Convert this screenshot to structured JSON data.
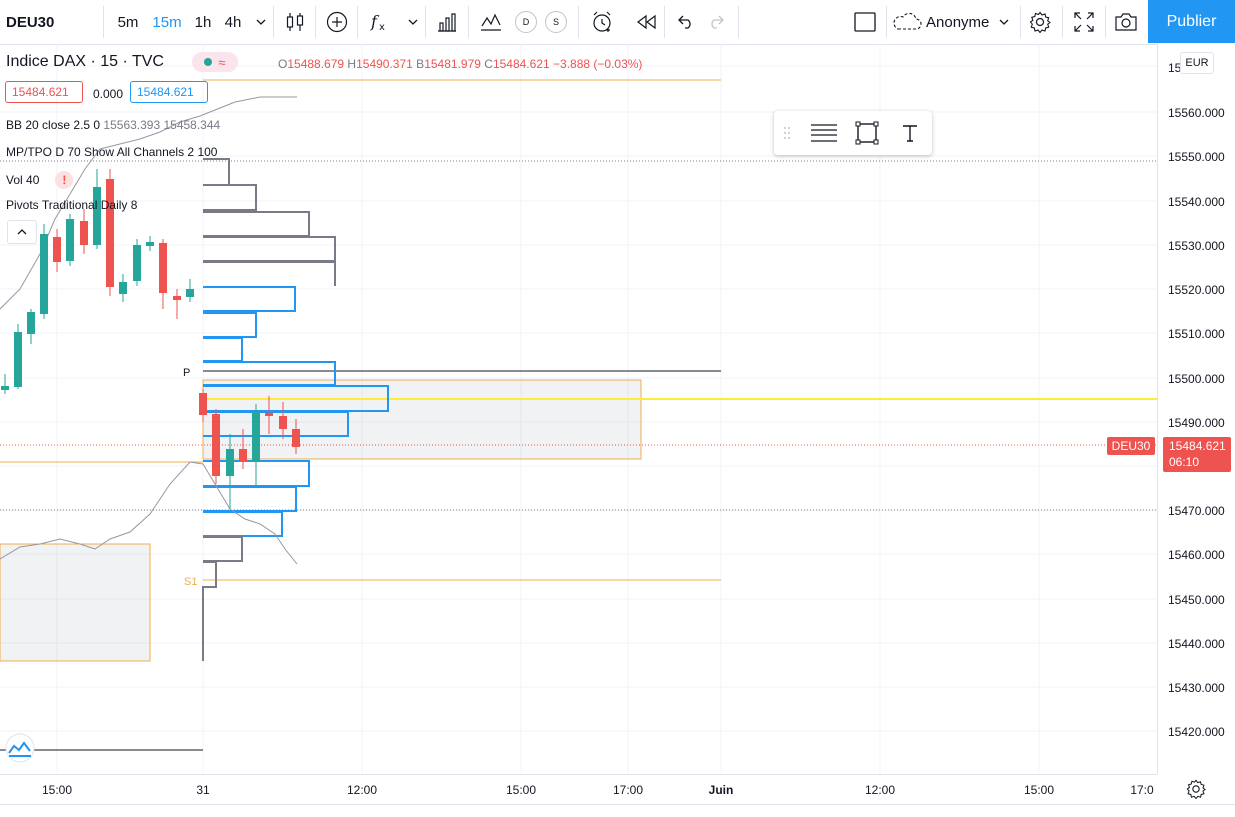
{
  "toolbar": {
    "symbol": "DEU30",
    "intervals": [
      "5m",
      "15m",
      "1h",
      "4h"
    ],
    "active_interval": "15m",
    "compare_d": "D",
    "compare_s": "S",
    "account": "Anonyme",
    "publish": "Publier"
  },
  "header": {
    "name": "Indice DAX · 15 · TVC",
    "ohlc": {
      "o_label": "O",
      "o": "15488.679",
      "h_label": "H",
      "h": "15490.371",
      "l_label": "B",
      "l": "15481.979",
      "c_label": "C",
      "c": "15484.621",
      "change": "−3.888 (−0.03%)"
    },
    "bid": "15484.621",
    "spread": "0.000",
    "ask": "15484.621"
  },
  "indicators": [
    {
      "name": "BB",
      "params": "20 close 2.5 0",
      "values": "15563.393  15458.344"
    },
    {
      "name": "MP/TPO",
      "params": "D 70 Show All Channels 2 100",
      "values": ""
    },
    {
      "name": "Vol",
      "params": "40",
      "values": ""
    },
    {
      "name": "Pivots",
      "params": "Traditional Daily 8",
      "values": ""
    }
  ],
  "pivot_labels": {
    "p": "P",
    "s1": "S1"
  },
  "price_axis": {
    "currency": "EUR",
    "ticks": [
      "15560.000",
      "15550.000",
      "15540.000",
      "15530.000",
      "15520.000",
      "15510.000",
      "15500.000",
      "15490.000",
      "15470.000",
      "15460.000",
      "15450.000",
      "15440.000",
      "15430.000",
      "15420.000"
    ],
    "top_partial": "15",
    "current_price": "15484.621",
    "countdown": "06:10",
    "symbol_tag": "DEU30"
  },
  "time_axis": {
    "ticks": [
      "15:00",
      "31",
      "12:00",
      "15:00",
      "17:00",
      "Juin",
      "12:00",
      "15:00",
      "17:0"
    ]
  },
  "colors": {
    "up": "#26a69a",
    "down": "#ef5350",
    "profile_gray": "#787b86",
    "profile_blue": "#2196f3",
    "value_area": "#f0ad4e",
    "poc": "#ffeb3b"
  }
}
